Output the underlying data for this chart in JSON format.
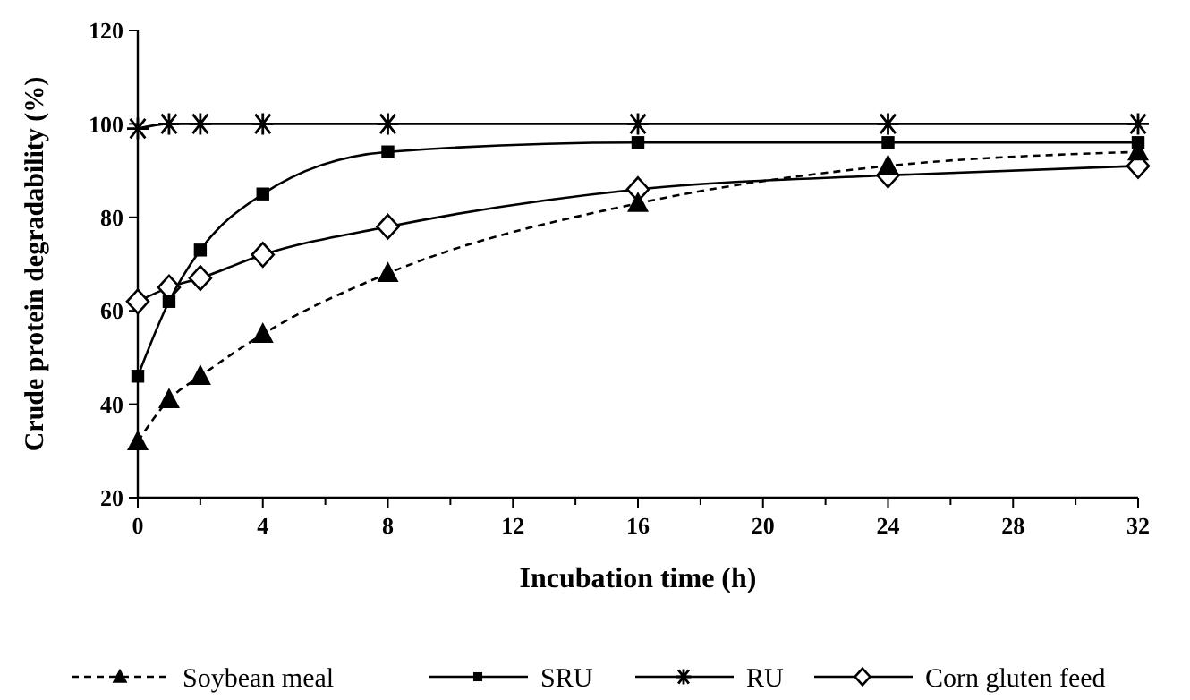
{
  "chart_data": {
    "type": "line",
    "xlabel": "Incubation time (h)",
    "ylabel": "Crude protein degradability (%)",
    "x": [
      0,
      1,
      2,
      4,
      8,
      16,
      24,
      32
    ],
    "xlim": [
      0,
      32
    ],
    "xticks": [
      0,
      {
        "value": 2,
        "label": null
      },
      4,
      {
        "value": 6,
        "label": null
      },
      8,
      {
        "value": 10,
        "label": null
      },
      12,
      {
        "value": 14,
        "label": null
      },
      16,
      {
        "value": 18,
        "label": null
      },
      20,
      {
        "value": 22,
        "label": null
      },
      24,
      {
        "value": 26,
        "label": null
      },
      28,
      {
        "value": 30,
        "label": null
      },
      32
    ],
    "ylim": [
      20,
      120
    ],
    "yticks": [
      20,
      40,
      60,
      80,
      100,
      120
    ],
    "legend": "bottom",
    "grid": false,
    "series": [
      {
        "name": "Soybean meal",
        "color": "#000000",
        "marker": "triangle",
        "line_style": "dashed",
        "values": [
          32,
          41,
          46,
          55,
          68,
          83,
          91,
          94
        ]
      },
      {
        "name": "SRU",
        "color": "#000000",
        "marker": "square",
        "line_style": "solid",
        "values": [
          46,
          62,
          73,
          85,
          94,
          96,
          96,
          96
        ]
      },
      {
        "name": "RU",
        "color": "#000000",
        "marker": "cross",
        "line_style": "solid",
        "values": [
          99,
          100,
          100,
          100,
          100,
          100,
          100,
          100
        ]
      },
      {
        "name": "Corn gluten feed",
        "color": "#000000",
        "marker": "diamond",
        "line_style": "solid",
        "values": [
          62,
          65,
          67,
          72,
          78,
          86,
          89,
          91
        ]
      }
    ]
  }
}
